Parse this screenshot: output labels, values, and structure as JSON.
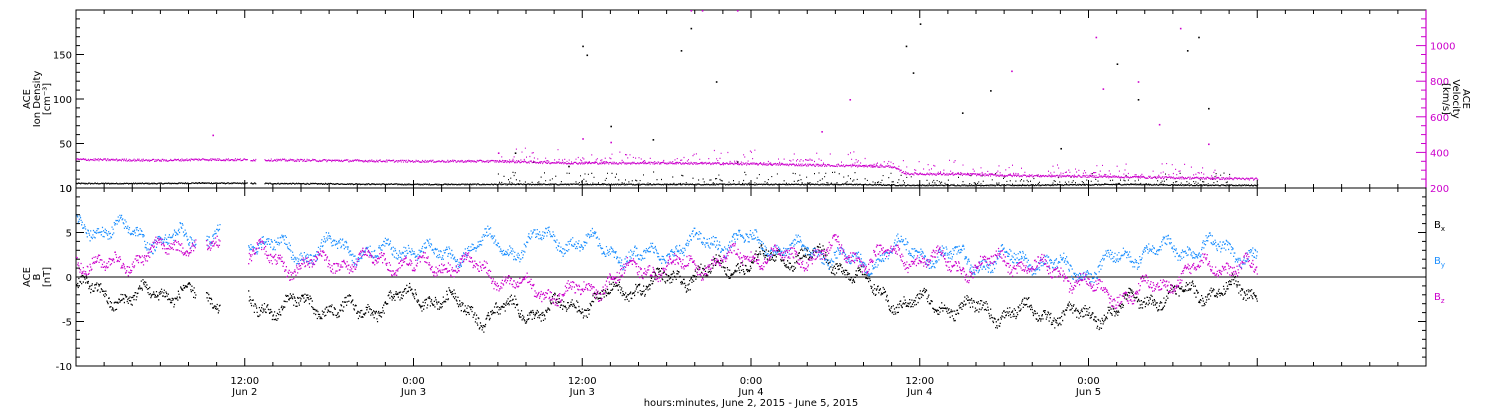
{
  "colors": {
    "density": "#000000",
    "velocity": "#cc00cc",
    "bx": "#000000",
    "by": "#1e90ff",
    "bz": "#cc00cc",
    "axis": "#000000"
  },
  "chart_data": [
    {
      "type": "scatter",
      "panel": "plasma",
      "ylabel_left": [
        "ACE",
        "Ion Density",
        "[cm⁻³]"
      ],
      "ylabel_right": [
        "ACE",
        "Velocity",
        "[km/s]"
      ],
      "ylim_left": [
        0,
        200
      ],
      "ylim_right": [
        200,
        1200
      ],
      "yticks_left": [
        0,
        50,
        100,
        150
      ],
      "yticks_right": [
        200,
        400,
        600,
        800,
        1000
      ],
      "x_unit": "hours since Jun 2 00:00",
      "xlim": [
        0,
        96
      ],
      "series": [
        {
          "name": "Ion Density",
          "axis": "left",
          "color": "#000000",
          "profile": [
            [
              0,
              5
            ],
            [
              6,
              5
            ],
            [
              8.5,
              5.5
            ],
            [
              24,
              4
            ],
            [
              31,
              4
            ],
            [
              42,
              4
            ],
            [
              55,
              4
            ],
            [
              59,
              3
            ],
            [
              67,
              3
            ],
            [
              75,
              4
            ],
            [
              80,
              3
            ],
            [
              84,
              3
            ]
          ],
          "scatter": [
            [
              31.2,
              40
            ],
            [
              32.5,
              30
            ],
            [
              35,
              25
            ],
            [
              36,
              160
            ],
            [
              36.3,
              150
            ],
            [
              38,
              70
            ],
            [
              41,
              55
            ],
            [
              43,
              155
            ],
            [
              43.7,
              180
            ],
            [
              45.5,
              120
            ],
            [
              47,
              30
            ],
            [
              59,
              160
            ],
            [
              59.5,
              130
            ],
            [
              60,
              185
            ],
            [
              63,
              85
            ],
            [
              65,
              110
            ],
            [
              70,
              45
            ],
            [
              74,
              140
            ],
            [
              75.5,
              100
            ],
            [
              79,
              155
            ],
            [
              79.8,
              170
            ],
            [
              80.5,
              90
            ]
          ]
        },
        {
          "name": "Velocity",
          "axis": "right",
          "color": "#cc00cc",
          "profile": [
            [
              0,
              360
            ],
            [
              6,
              355
            ],
            [
              9,
              360
            ],
            [
              24,
              350
            ],
            [
              30,
              350
            ],
            [
              35,
              340
            ],
            [
              42,
              340
            ],
            [
              48,
              335
            ],
            [
              58,
              320
            ],
            [
              59,
              280
            ],
            [
              64,
              275
            ],
            [
              66,
              270
            ],
            [
              72,
              265
            ],
            [
              80,
              255
            ],
            [
              84,
              250
            ]
          ],
          "scatter": [
            [
              9.7,
              500
            ],
            [
              30,
              400
            ],
            [
              36,
              480
            ],
            [
              38,
              460
            ],
            [
              43.7,
              1200
            ],
            [
              44.5,
              1200
            ],
            [
              47,
              1200
            ],
            [
              53,
              520
            ],
            [
              55,
              700
            ],
            [
              66.5,
              860
            ],
            [
              72.5,
              1050
            ],
            [
              73,
              760
            ],
            [
              75.5,
              800
            ],
            [
              77,
              560
            ],
            [
              78.5,
              1100
            ],
            [
              80.5,
              450
            ]
          ]
        }
      ]
    },
    {
      "type": "scatter",
      "panel": "magnetic",
      "ylabel": [
        "ACE",
        "B",
        "[nT]"
      ],
      "ylim": [
        -10,
        10
      ],
      "yticks": [
        -10,
        -5,
        0,
        5,
        10
      ],
      "zero_line": 0,
      "x_unit": "hours since Jun 2 00:00",
      "xlim": [
        0,
        96
      ],
      "data_end": 84,
      "gaps": [
        [
          8.5,
          9.2
        ],
        [
          10.2,
          12.2
        ]
      ],
      "series": [
        {
          "name": "Bx",
          "color": "#000000",
          "profile": [
            [
              0,
              -1
            ],
            [
              2,
              -2
            ],
            [
              4,
              -2.5
            ],
            [
              6,
              -1.5
            ],
            [
              8,
              -2
            ],
            [
              10,
              -2.5
            ],
            [
              13,
              -3.5
            ],
            [
              16,
              -3
            ],
            [
              18,
              -3.5
            ],
            [
              20,
              -4
            ],
            [
              22,
              -3
            ],
            [
              24,
              -2
            ],
            [
              27,
              -3
            ],
            [
              29,
              -4.5
            ],
            [
              31,
              -3.5
            ],
            [
              33,
              -4
            ],
            [
              36,
              -3
            ],
            [
              38,
              -2
            ],
            [
              40,
              -1
            ],
            [
              43,
              0
            ],
            [
              46,
              1
            ],
            [
              49,
              2
            ],
            [
              52,
              2.5
            ],
            [
              55,
              1
            ],
            [
              57,
              -2
            ],
            [
              59,
              -3
            ],
            [
              61,
              -3
            ],
            [
              63,
              -3.5
            ],
            [
              66,
              -4
            ],
            [
              68,
              -4
            ],
            [
              70,
              -4.2
            ],
            [
              72,
              -4.5
            ],
            [
              74,
              -3.5
            ],
            [
              76,
              -2.5
            ],
            [
              78,
              -2
            ],
            [
              80,
              -1.5
            ],
            [
              82,
              -1.5
            ],
            [
              84,
              -2
            ]
          ]
        },
        {
          "name": "By",
          "color": "#1e90ff",
          "profile": [
            [
              0,
              5.5
            ],
            [
              2,
              5.5
            ],
            [
              4,
              5
            ],
            [
              6,
              4
            ],
            [
              8,
              4.5
            ],
            [
              10,
              5
            ],
            [
              13,
              4
            ],
            [
              16,
              2.5
            ],
            [
              18,
              3.5
            ],
            [
              20,
              3
            ],
            [
              22,
              2.5
            ],
            [
              24,
              3.5
            ],
            [
              26,
              2
            ],
            [
              29,
              4
            ],
            [
              31,
              3
            ],
            [
              33,
              4.5
            ],
            [
              35,
              4
            ],
            [
              37,
              3.5
            ],
            [
              40,
              2
            ],
            [
              42,
              3
            ],
            [
              45,
              4
            ],
            [
              48,
              4
            ],
            [
              51,
              3
            ],
            [
              54,
              2.5
            ],
            [
              56,
              1
            ],
            [
              58,
              3.5
            ],
            [
              60,
              2.5
            ],
            [
              62,
              2.5
            ],
            [
              64,
              1.5
            ],
            [
              66,
              2
            ],
            [
              68,
              2
            ],
            [
              70,
              1
            ],
            [
              72,
              0.5
            ],
            [
              74,
              2
            ],
            [
              76,
              3
            ],
            [
              78,
              3
            ],
            [
              80,
              3.5
            ],
            [
              82,
              3
            ],
            [
              84,
              2.5
            ]
          ]
        },
        {
          "name": "Bz",
          "color": "#cc00cc",
          "profile": [
            [
              0,
              2
            ],
            [
              2,
              1
            ],
            [
              4,
              2
            ],
            [
              6,
              3
            ],
            [
              8,
              4
            ],
            [
              10,
              3
            ],
            [
              13,
              2.5
            ],
            [
              16,
              1
            ],
            [
              18,
              2
            ],
            [
              20,
              1.5
            ],
            [
              22,
              2
            ],
            [
              24,
              1
            ],
            [
              26,
              1.5
            ],
            [
              29,
              1
            ],
            [
              31,
              -1
            ],
            [
              33,
              -1.5
            ],
            [
              35,
              -2
            ],
            [
              37,
              -1
            ],
            [
              40,
              1
            ],
            [
              42,
              1
            ],
            [
              45,
              1.5
            ],
            [
              48,
              2.5
            ],
            [
              51,
              2
            ],
            [
              54,
              3
            ],
            [
              56,
              2
            ],
            [
              58,
              2.5
            ],
            [
              60,
              2
            ],
            [
              62,
              1.5
            ],
            [
              64,
              1
            ],
            [
              66,
              2
            ],
            [
              68,
              1
            ],
            [
              70,
              0.5
            ],
            [
              72,
              -1
            ],
            [
              73,
              -2
            ],
            [
              75,
              -2
            ],
            [
              77,
              -1
            ],
            [
              79,
              0.5
            ],
            [
              81,
              1.5
            ],
            [
              83,
              1
            ],
            [
              84,
              0.5
            ]
          ]
        }
      ],
      "legend": [
        {
          "main": "B",
          "sub": "x",
          "color": "#000000"
        },
        {
          "main": "B",
          "sub": "y",
          "color": "#1e90ff"
        },
        {
          "main": "B",
          "sub": "z",
          "color": "#cc00cc"
        }
      ]
    }
  ],
  "x_axis": {
    "ticks": [
      {
        "hour": 12,
        "time": "12:00",
        "date": "Jun 2"
      },
      {
        "hour": 24,
        "time": "0:00",
        "date": "Jun 3"
      },
      {
        "hour": 36,
        "time": "12:00",
        "date": "Jun 3"
      },
      {
        "hour": 48,
        "time": "0:00",
        "date": "Jun 4"
      },
      {
        "hour": 60,
        "time": "12:00",
        "date": "Jun 4"
      },
      {
        "hour": 72,
        "time": "0:00",
        "date": "Jun 5"
      }
    ],
    "tick_label_note": "as printed",
    "title": "hours:minutes, June  2, 2015 - June  5, 2015"
  }
}
